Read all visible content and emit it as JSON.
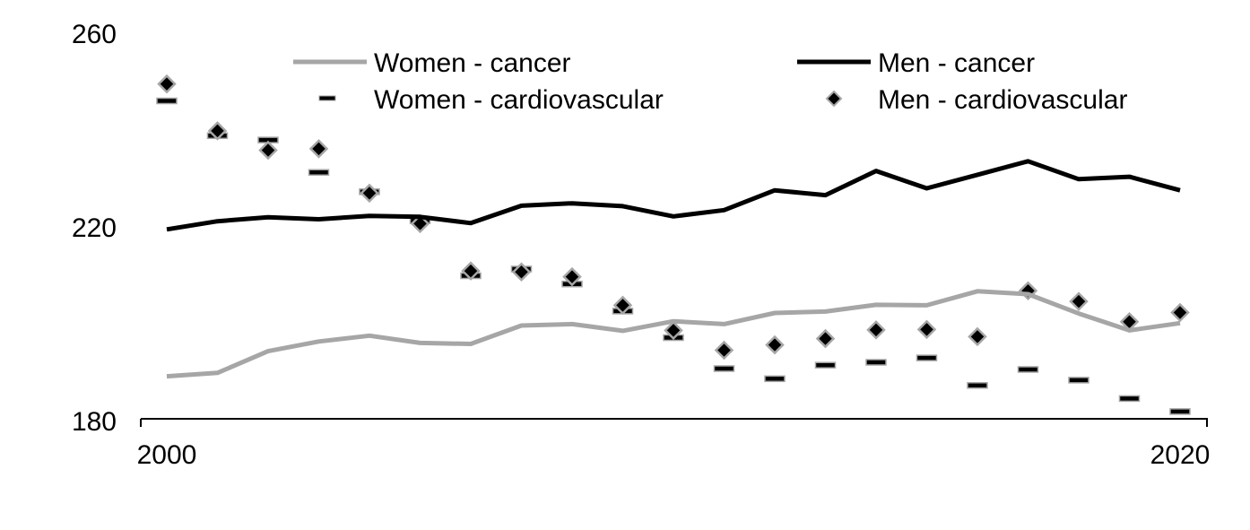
{
  "chart_data": {
    "type": "line",
    "title": "",
    "xlabel": "",
    "ylabel": "",
    "x": [
      2000,
      2001,
      2002,
      2003,
      2004,
      2005,
      2006,
      2007,
      2008,
      2009,
      2010,
      2011,
      2012,
      2013,
      2014,
      2015,
      2016,
      2017,
      2018,
      2019,
      2020
    ],
    "xlim": [
      2000,
      2020
    ],
    "ylim": [
      180,
      260
    ],
    "x_ticks": [
      "2000",
      "2020"
    ],
    "y_ticks": [
      "180",
      "220",
      "260"
    ],
    "grid": false,
    "legend_position": "top",
    "series": [
      {
        "name": "Women - cancer",
        "style": "line",
        "color": "#a6a6a6",
        "values": [
          188.8,
          189.5,
          194.0,
          196.0,
          197.2,
          195.7,
          195.5,
          199.3,
          199.6,
          198.2,
          200.2,
          199.6,
          201.9,
          202.2,
          203.6,
          203.5,
          206.4,
          205.8,
          201.8,
          198.3,
          199.8
        ]
      },
      {
        "name": "Men - cancer",
        "style": "line",
        "color": "#000000",
        "values": [
          219.2,
          220.9,
          221.7,
          221.3,
          222.0,
          221.8,
          220.5,
          224.1,
          224.6,
          224.0,
          221.9,
          223.2,
          227.3,
          226.3,
          231.3,
          227.7,
          230.5,
          233.3,
          229.6,
          230.1,
          227.3
        ]
      },
      {
        "name": "Women - cardiovascular",
        "style": "dash-marker",
        "color": "#000000",
        "values": [
          245.8,
          238.6,
          237.7,
          231.0,
          227.0,
          221.0,
          209.6,
          211.0,
          207.9,
          202.3,
          196.8,
          190.4,
          188.3,
          191.1,
          191.7,
          192.6,
          186.9,
          190.2,
          188.0,
          184.2,
          181.5
        ]
      },
      {
        "name": "Men - cardiovascular",
        "style": "diamond-marker",
        "color": "#000000",
        "values": [
          249.3,
          239.6,
          235.6,
          235.9,
          226.7,
          220.4,
          210.6,
          210.4,
          209.4,
          203.5,
          198.3,
          194.2,
          195.3,
          196.6,
          198.4,
          198.5,
          197.0,
          206.5,
          204.3,
          200.1,
          202.0
        ]
      }
    ]
  }
}
